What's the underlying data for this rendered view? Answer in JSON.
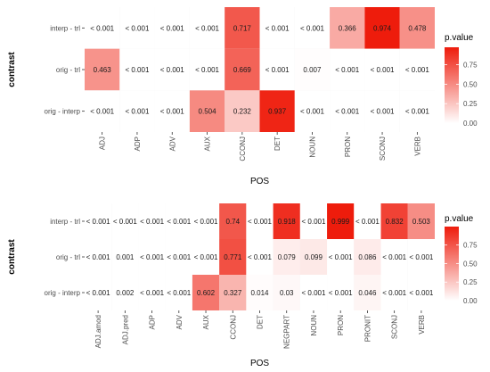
{
  "chart_data": [
    {
      "type": "heatmap",
      "xlabel": "POS",
      "ylabel": "contrast",
      "x_categories": [
        "ADJ",
        "ADP",
        "ADV",
        "AUX",
        "CCONJ",
        "DET",
        "NOUN",
        "PRON",
        "SCONJ",
        "VERB"
      ],
      "y_categories": [
        "interp - trl",
        "orig - trl",
        "orig - interp"
      ],
      "cells": [
        [
          "< 0.001",
          "< 0.001",
          "< 0.001",
          "< 0.001",
          "0.717",
          "< 0.001",
          "< 0.001",
          "0.366",
          "0.974",
          "0.478"
        ],
        [
          "0.463",
          "< 0.001",
          "< 0.001",
          "< 0.001",
          "0.669",
          "< 0.001",
          "0.007",
          "< 0.001",
          "< 0.001",
          "< 0.001"
        ],
        [
          "< 0.001",
          "< 0.001",
          "< 0.001",
          "0.504",
          "0.232",
          "0.937",
          "< 0.001",
          "< 0.001",
          "< 0.001",
          "< 0.001"
        ]
      ],
      "values": [
        [
          0.0005,
          0.0005,
          0.0005,
          0.0005,
          0.717,
          0.0005,
          0.0005,
          0.366,
          0.974,
          0.478
        ],
        [
          0.463,
          0.0005,
          0.0005,
          0.0005,
          0.669,
          0.0005,
          0.007,
          0.0005,
          0.0005,
          0.0005
        ],
        [
          0.0005,
          0.0005,
          0.0005,
          0.504,
          0.232,
          0.937,
          0.0005,
          0.0005,
          0.0005,
          0.0005
        ]
      ],
      "legend": {
        "title": "p.value",
        "ticks": [
          "0.75",
          "0.50",
          "0.25",
          "0.00"
        ],
        "tick_values": [
          0.75,
          0.5,
          0.25,
          0
        ],
        "range": [
          0,
          0.974
        ],
        "position": "right"
      },
      "colors": {
        "low": "#ffffff",
        "high": "#ee1c0c",
        "panel": "#ebebeb"
      }
    },
    {
      "type": "heatmap",
      "xlabel": "POS",
      "ylabel": "contrast",
      "x_categories": [
        "ADJ.amod",
        "ADJ.pred",
        "ADP",
        "ADV",
        "AUX",
        "CCONJ",
        "DET",
        "NEGPART",
        "NOUN",
        "PRON",
        "PRONIT",
        "SCONJ",
        "VERB"
      ],
      "y_categories": [
        "interp - trl",
        "orig - trl",
        "orig - interp"
      ],
      "cells": [
        [
          "< 0.001",
          "< 0.001",
          "< 0.001",
          "< 0.001",
          "< 0.001",
          "0.74",
          "< 0.001",
          "0.918",
          "< 0.001",
          "0.999",
          "< 0.001",
          "0.832",
          "0.503"
        ],
        [
          "< 0.001",
          "0.001",
          "< 0.001",
          "< 0.001",
          "< 0.001",
          "0.771",
          "< 0.001",
          "0.079",
          "0.099",
          "< 0.001",
          "0.086",
          "< 0.001",
          "< 0.001"
        ],
        [
          "< 0.001",
          "0.002",
          "< 0.001",
          "< 0.001",
          "0.602",
          "0.327",
          "0.014",
          "0.03",
          "< 0.001",
          "< 0.001",
          "0.046",
          "< 0.001",
          "< 0.001"
        ]
      ],
      "values": [
        [
          0.0005,
          0.0005,
          0.0005,
          0.0005,
          0.0005,
          0.74,
          0.0005,
          0.918,
          0.0005,
          0.999,
          0.0005,
          0.832,
          0.503
        ],
        [
          0.0005,
          0.001,
          0.0005,
          0.0005,
          0.0005,
          0.771,
          0.0005,
          0.079,
          0.099,
          0.0005,
          0.086,
          0.0005,
          0.0005
        ],
        [
          0.0005,
          0.002,
          0.0005,
          0.0005,
          0.602,
          0.327,
          0.014,
          0.03,
          0.0005,
          0.0005,
          0.046,
          0.0005,
          0.0005
        ]
      ],
      "legend": {
        "title": "p.value",
        "ticks": [
          "0.75",
          "0.50",
          "0.25",
          "0.00"
        ],
        "tick_values": [
          0.75,
          0.5,
          0.25,
          0
        ],
        "range": [
          0,
          0.999
        ],
        "position": "right"
      },
      "colors": {
        "low": "#ffffff",
        "high": "#ee1c0c",
        "panel": "#ebebeb"
      }
    }
  ]
}
